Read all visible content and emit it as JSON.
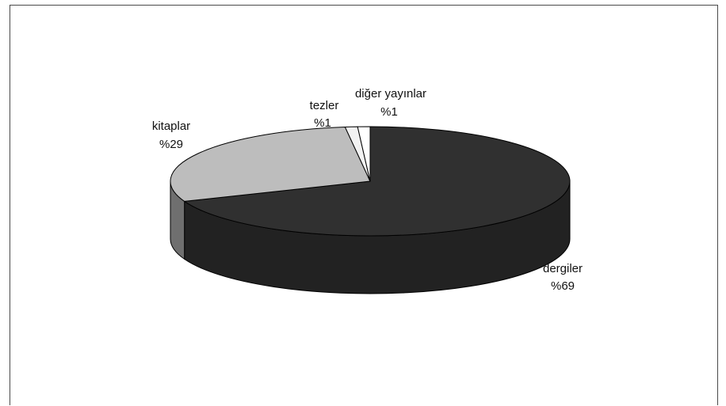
{
  "chart_data": {
    "type": "pie",
    "style": "3d",
    "title": "",
    "legend": "none",
    "slices": [
      {
        "label": "dergiler",
        "value": 69,
        "value_text": "%69",
        "color": "#303030",
        "side_color": "#222222"
      },
      {
        "label": "kitaplar",
        "value": 29,
        "value_text": "%29",
        "color": "#bdbdbd",
        "side_color": "#6f6f6f"
      },
      {
        "label": "tezler",
        "value": 1,
        "value_text": "%1",
        "color": "#f2f2f2",
        "side_color": "#9a9a9a"
      },
      {
        "label": "diğer yayınlar",
        "value": 1,
        "value_text": "%1",
        "color": "#ffffff",
        "side_color": "#a0a0a0"
      }
    ]
  }
}
